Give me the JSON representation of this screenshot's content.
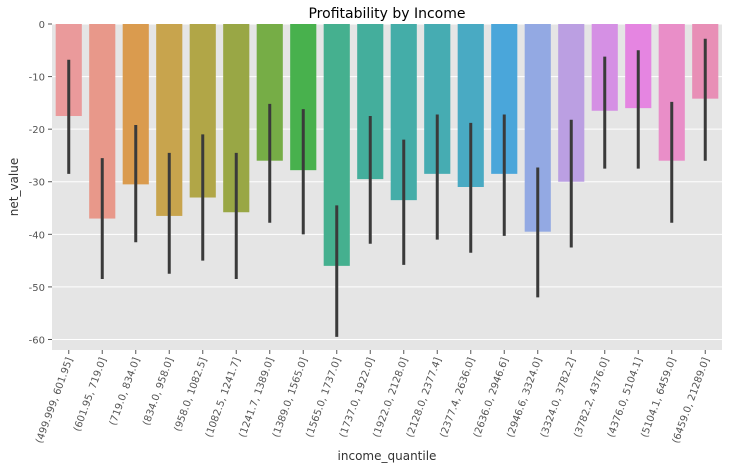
{
  "chart_data": {
    "type": "bar",
    "title": "Profitability by Income",
    "xlabel": "income_quantile",
    "ylabel": "net_value",
    "ylim": [
      -62,
      0
    ],
    "yticks": [
      0,
      -10,
      -20,
      -30,
      -40,
      -50,
      -60
    ],
    "grid": true,
    "background": "#e5e5e5",
    "categories": [
      "(499.999, 601.95]",
      "(601.95, 719.0]",
      "(719.0, 834.0]",
      "(834.0, 958.0]",
      "(958.0, 1082.5]",
      "(1082.5, 1241.7]",
      "(1241.7, 1389.0]",
      "(1389.0, 1565.0]",
      "(1565.0, 1737.0]",
      "(1737.0, 1922.0]",
      "(1922.0, 2128.0]",
      "(2128.0, 2377.4]",
      "(2377.4, 2636.0]",
      "(2636.0, 2946.6]",
      "(2946.6, 3324.0]",
      "(3324.0, 3782.2]",
      "(3782.2, 4376.0]",
      "(4376.0, 5104.1]",
      "(5104.1, 6459.0]",
      "(6459.0, 21289.0]"
    ],
    "values": [
      -17.5,
      -37.0,
      -30.5,
      -36.5,
      -33.0,
      -35.8,
      -26.0,
      -27.8,
      -46.0,
      -29.5,
      -33.5,
      -28.5,
      -31.0,
      -28.5,
      -39.5,
      -30.0,
      -16.5,
      -16.0,
      -26.0,
      -14.2
    ],
    "ci_low": [
      -28.5,
      -48.5,
      -41.5,
      -47.5,
      -45.0,
      -48.5,
      -37.8,
      -40.0,
      -59.5,
      -41.8,
      -45.8,
      -41.0,
      -43.5,
      -40.3,
      -52.0,
      -42.5,
      -27.5,
      -27.5,
      -37.8,
      -26.0
    ],
    "ci_high": [
      -6.8,
      -25.5,
      -19.2,
      -24.5,
      -21.0,
      -24.5,
      -15.2,
      -16.2,
      -34.5,
      -17.5,
      -22.0,
      -17.2,
      -18.8,
      -17.2,
      -27.3,
      -18.2,
      -6.2,
      -5.0,
      -14.8,
      -2.8
    ],
    "colors": [
      "#ea9a9b",
      "#e8988a",
      "#da9b4e",
      "#c8a44d",
      "#b1a647",
      "#99a745",
      "#76ad46",
      "#48b14d",
      "#45b08f",
      "#44ae9c",
      "#44ada8",
      "#46acb2",
      "#49aac3",
      "#4aa6da",
      "#93a9e3",
      "#bb9fe2",
      "#d590e4",
      "#e585e1",
      "#e98ec8",
      "#e88fb6"
    ],
    "errorbar_color": "#3a3a3a"
  }
}
